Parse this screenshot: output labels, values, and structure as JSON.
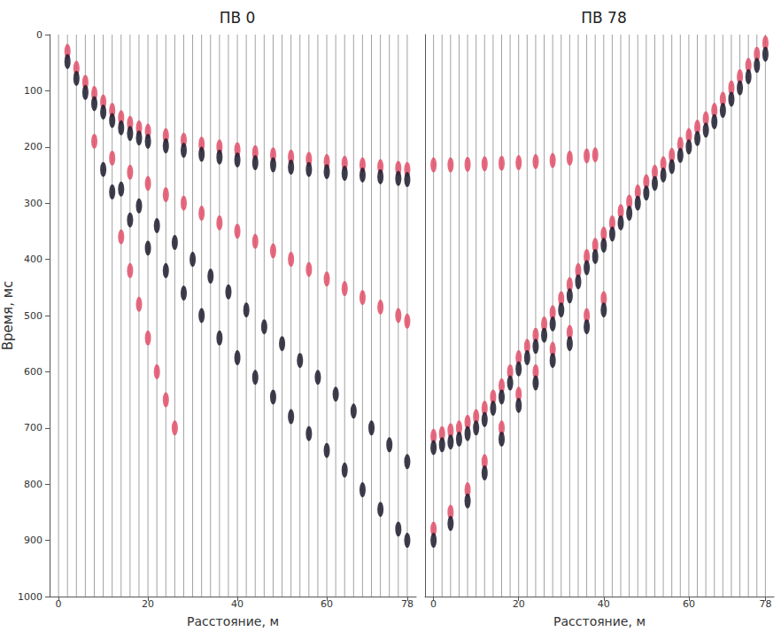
{
  "chart_data": [
    {
      "type": "scatter",
      "title": "ПВ 0",
      "xlabel": "Расстояние, м",
      "ylabel": "Время, мс",
      "xlim": [
        -2,
        80
      ],
      "xticks": [
        0,
        20,
        40,
        60,
        78
      ],
      "ylim": [
        0,
        1000
      ],
      "yticks": [
        0,
        100,
        200,
        300,
        400,
        500,
        600,
        700,
        800,
        900,
        1000
      ],
      "log": false,
      "grid": false,
      "traces": [
        0,
        2,
        4,
        6,
        8,
        10,
        12,
        14,
        16,
        18,
        20,
        22,
        24,
        26,
        28,
        30,
        32,
        34,
        36,
        38,
        40,
        42,
        44,
        46,
        48,
        50,
        52,
        54,
        56,
        58,
        60,
        62,
        64,
        66,
        68,
        70,
        72,
        74,
        76,
        78
      ],
      "series": [
        {
          "color": "#e0506a",
          "marker": "ellipse",
          "x": [
            2,
            4,
            6,
            8,
            10,
            12,
            14,
            16,
            18,
            20,
            24,
            28,
            32,
            36,
            40,
            44,
            48,
            52,
            56,
            60,
            64,
            68,
            72,
            76,
            78
          ],
          "values": [
            30,
            60,
            85,
            105,
            120,
            135,
            148,
            158,
            166,
            172,
            180,
            188,
            195,
            200,
            205,
            210,
            214,
            218,
            222,
            226,
            229,
            232,
            235,
            238,
            240
          ]
        },
        {
          "color": "#1c1c2e",
          "marker": "ellipse",
          "x": [
            2,
            4,
            6,
            8,
            10,
            12,
            14,
            16,
            18,
            20,
            24,
            28,
            32,
            36,
            40,
            44,
            48,
            52,
            56,
            60,
            64,
            68,
            72,
            76,
            78
          ],
          "values": [
            48,
            78,
            103,
            123,
            138,
            153,
            166,
            176,
            184,
            190,
            198,
            206,
            213,
            218,
            223,
            228,
            232,
            236,
            240,
            244,
            247,
            250,
            253,
            256,
            258
          ]
        },
        {
          "color": "#e0506a",
          "marker": "ellipse",
          "x": [
            8,
            12,
            16,
            20,
            24,
            28,
            32,
            36,
            40,
            44,
            48,
            52,
            56,
            60,
            64,
            68,
            72,
            76,
            78
          ],
          "values": [
            190,
            220,
            245,
            265,
            285,
            300,
            318,
            335,
            350,
            368,
            385,
            400,
            418,
            435,
            452,
            468,
            485,
            500,
            510
          ]
        },
        {
          "color": "#1c1c2e",
          "marker": "ellipse",
          "x": [
            10,
            14,
            18,
            22,
            26,
            30,
            34,
            38,
            42,
            46,
            50,
            54,
            58,
            62,
            66,
            70,
            74,
            78
          ],
          "values": [
            240,
            275,
            305,
            340,
            370,
            400,
            430,
            458,
            490,
            520,
            550,
            580,
            610,
            640,
            670,
            700,
            730,
            760
          ]
        },
        {
          "color": "#1c1c2e",
          "marker": "ellipse",
          "x": [
            12,
            16,
            20,
            24,
            28,
            32,
            36,
            40,
            44,
            48,
            52,
            56,
            60,
            64,
            68,
            72,
            76,
            78
          ],
          "values": [
            280,
            330,
            380,
            420,
            460,
            500,
            540,
            575,
            610,
            645,
            680,
            710,
            740,
            775,
            810,
            845,
            880,
            900
          ]
        },
        {
          "color": "#e0506a",
          "marker": "ellipse",
          "x": [
            14,
            16,
            18,
            20,
            22,
            24,
            26
          ],
          "values": [
            360,
            420,
            480,
            540,
            600,
            650,
            700
          ]
        }
      ]
    },
    {
      "type": "scatter",
      "title": "ПВ 78",
      "xlabel": "Расстояние, м",
      "xlim": [
        -2,
        80
      ],
      "xticks": [
        0,
        20,
        40,
        60,
        78
      ],
      "ylim": [
        0,
        1000
      ],
      "yticks": [
        0,
        100,
        200,
        300,
        400,
        500,
        600,
        700,
        800,
        900,
        1000
      ],
      "log": false,
      "grid": false,
      "tick_labels": "x",
      "traces": [
        0,
        2,
        4,
        6,
        8,
        10,
        12,
        14,
        16,
        18,
        20,
        22,
        24,
        26,
        28,
        30,
        32,
        34,
        36,
        38,
        40,
        42,
        44,
        46,
        48,
        50,
        52,
        54,
        56,
        58,
        60,
        62,
        64,
        66,
        68,
        70,
        72,
        74,
        76,
        78
      ],
      "series": [
        {
          "color": "#e0506a",
          "marker": "ellipse",
          "x": [
            78,
            76,
            74,
            72,
            70,
            68,
            66,
            64,
            62,
            60,
            58,
            56,
            54,
            52,
            50,
            48,
            46,
            44,
            42,
            40,
            38,
            36,
            34,
            32,
            30,
            28,
            26,
            24,
            22,
            20,
            18,
            16,
            14,
            12,
            10,
            8,
            6,
            4,
            2,
            0
          ],
          "values": [
            15,
            35,
            55,
            75,
            95,
            115,
            135,
            150,
            165,
            180,
            195,
            215,
            230,
            245,
            262,
            280,
            298,
            315,
            335,
            355,
            375,
            395,
            420,
            445,
            470,
            495,
            515,
            535,
            555,
            575,
            600,
            625,
            645,
            665,
            680,
            690,
            700,
            705,
            710,
            715
          ]
        },
        {
          "color": "#1c1c2e",
          "marker": "ellipse",
          "x": [
            78,
            76,
            74,
            72,
            70,
            68,
            66,
            64,
            62,
            60,
            58,
            56,
            54,
            52,
            50,
            48,
            46,
            44,
            42,
            40,
            38,
            36,
            34,
            32,
            30,
            28,
            26,
            24,
            22,
            20,
            18,
            16,
            14,
            12,
            10,
            8,
            6,
            4,
            2,
            0
          ],
          "values": [
            35,
            55,
            75,
            95,
            115,
            135,
            155,
            170,
            185,
            200,
            215,
            235,
            250,
            265,
            282,
            300,
            318,
            335,
            355,
            375,
            395,
            415,
            440,
            465,
            490,
            515,
            535,
            555,
            575,
            595,
            620,
            645,
            665,
            685,
            700,
            710,
            720,
            725,
            730,
            735
          ]
        },
        {
          "color": "#e0506a",
          "marker": "ellipse",
          "x": [
            40,
            36,
            32,
            28,
            24,
            20,
            16,
            12,
            8,
            4,
            0
          ],
          "values": [
            470,
            500,
            530,
            560,
            600,
            640,
            700,
            760,
            810,
            850,
            880
          ]
        },
        {
          "color": "#1c1c2e",
          "marker": "ellipse",
          "x": [
            40,
            36,
            32,
            28,
            24,
            20,
            16,
            12,
            8,
            4,
            0
          ],
          "values": [
            490,
            520,
            550,
            580,
            620,
            660,
            720,
            780,
            830,
            870,
            900
          ]
        },
        {
          "color": "#e0506a",
          "marker": "ellipse",
          "x": [
            0,
            4,
            8,
            12,
            16,
            20,
            24,
            28,
            32,
            36,
            38
          ],
          "values": [
            232,
            232,
            231,
            230,
            229,
            228,
            226,
            224,
            220,
            216,
            214
          ]
        }
      ]
    }
  ]
}
